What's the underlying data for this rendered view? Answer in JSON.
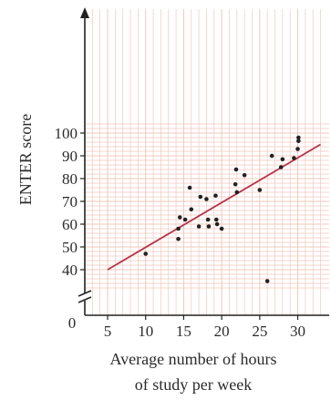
{
  "chart_data": {
    "type": "scatter",
    "title": "",
    "xlabel_lines": [
      "Average number of hours",
      "of study per week"
    ],
    "ylabel": "ENTER score",
    "origin_label": "0",
    "xlim": [
      2,
      32
    ],
    "ylim": [
      30,
      104
    ],
    "x_ticks": [
      5,
      10,
      15,
      20,
      25,
      30
    ],
    "y_ticks": [
      40,
      50,
      60,
      70,
      80,
      90,
      100
    ],
    "grid": true,
    "y_axis_break": true,
    "colors": {
      "grid": "#f2c8bc",
      "line": "#b5344b",
      "points": "#222222",
      "axis": "#222222"
    },
    "points": [
      {
        "x": 10,
        "y": 47
      },
      {
        "x": 14.3,
        "y": 53.5
      },
      {
        "x": 14.3,
        "y": 58
      },
      {
        "x": 14.5,
        "y": 63
      },
      {
        "x": 15.2,
        "y": 62
      },
      {
        "x": 15.8,
        "y": 76
      },
      {
        "x": 16,
        "y": 66.5
      },
      {
        "x": 17,
        "y": 59
      },
      {
        "x": 17.2,
        "y": 72
      },
      {
        "x": 18,
        "y": 71
      },
      {
        "x": 18.2,
        "y": 62
      },
      {
        "x": 18.3,
        "y": 59
      },
      {
        "x": 19.2,
        "y": 72.5
      },
      {
        "x": 19.3,
        "y": 62
      },
      {
        "x": 19.4,
        "y": 60
      },
      {
        "x": 20,
        "y": 58
      },
      {
        "x": 21.8,
        "y": 77.5
      },
      {
        "x": 21.9,
        "y": 84
      },
      {
        "x": 22,
        "y": 74
      },
      {
        "x": 23,
        "y": 81.5
      },
      {
        "x": 25,
        "y": 75
      },
      {
        "x": 26,
        "y": 35
      },
      {
        "x": 26.6,
        "y": 90
      },
      {
        "x": 27.8,
        "y": 85
      },
      {
        "x": 28,
        "y": 88.5
      },
      {
        "x": 29.5,
        "y": 89
      },
      {
        "x": 30,
        "y": 93
      },
      {
        "x": 30.1,
        "y": 96.5
      },
      {
        "x": 30.1,
        "y": 98
      }
    ],
    "trend_line": {
      "x1": 5,
      "y1": 40,
      "x2": 33,
      "y2": 95
    }
  }
}
